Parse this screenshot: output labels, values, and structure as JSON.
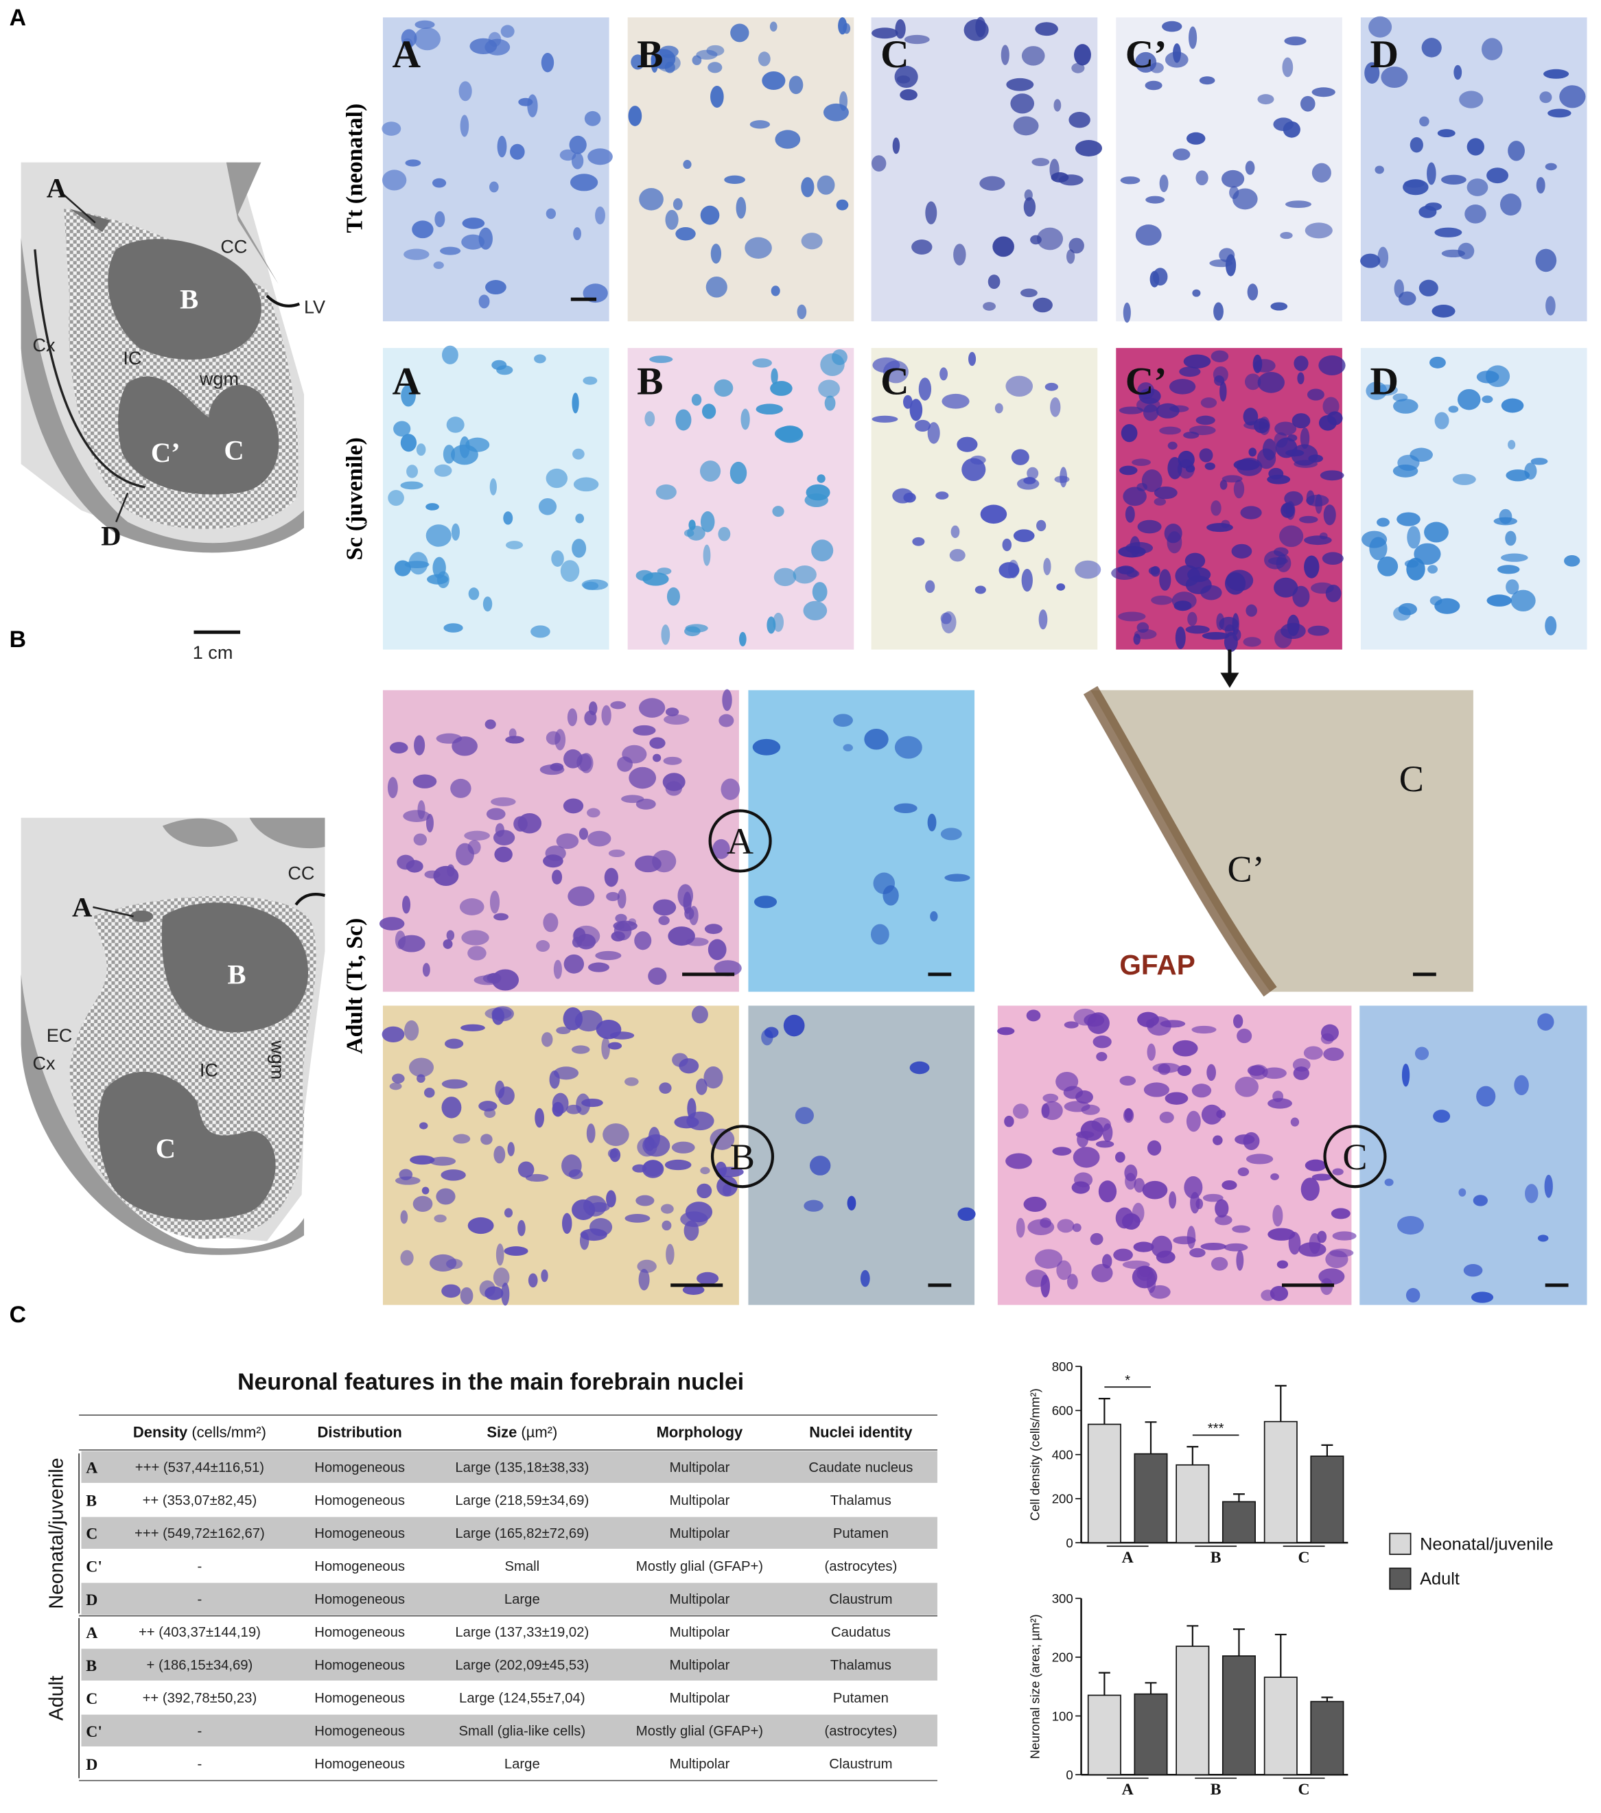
{
  "panel_labels": [
    "A",
    "B",
    "C"
  ],
  "diagram_a": {
    "A": "A",
    "CC": "CC",
    "LV": "LV",
    "B": "B",
    "Cx": "Cx",
    "IC": "IC",
    "wgm": "wgm",
    "Cp": "C’",
    "C": "C",
    "D": "D",
    "scale": "1 cm"
  },
  "diagram_b": {
    "A": "A",
    "CC": "CC",
    "B": "B",
    "EC": "EC",
    "Cx": "Cx",
    "IC": "IC",
    "wgm": "wgm",
    "C": "C"
  },
  "micrographs": {
    "row_labels": [
      "Tt (neonatal)",
      "Sc (juvenile)",
      "Adult (Tt, Sc)"
    ],
    "tt_tiles": [
      "A",
      "B",
      "C",
      "C’",
      "D"
    ],
    "sc_tiles": [
      "A",
      "B",
      "C",
      "C’",
      "D"
    ],
    "adult_circles": [
      "A",
      "B",
      "C"
    ],
    "gfap": {
      "label": "GFAP",
      "regions": [
        "C",
        "C’"
      ]
    }
  },
  "table": {
    "title": "Neuronal features in the main forebrain nuclei",
    "headers": [
      {
        "name": "Density",
        "unit": "(cells/mm²)"
      },
      {
        "name": "Distribution"
      },
      {
        "name": "Size",
        "unit": "(µm²)"
      },
      {
        "name": "Morphology"
      },
      {
        "name": "Nuclei identity"
      }
    ],
    "groups": [
      {
        "name": "Neonatal/juvenile",
        "rows": [
          [
            "A",
            "+++ (537,44±116,51)",
            "Homogeneous",
            "Large (135,18±38,33)",
            "Multipolar",
            "Caudate nucleus"
          ],
          [
            "B",
            "++ (353,07±82,45)",
            "Homogeneous",
            "Large (218,59±34,69)",
            "Multipolar",
            "Thalamus"
          ],
          [
            "C",
            "+++ (549,72±162,67)",
            "Homogeneous",
            "Large (165,82±72,69)",
            "Multipolar",
            "Putamen"
          ],
          [
            "C'",
            "-",
            "Homogeneous",
            "Small",
            "Mostly glial (GFAP+)",
            "(astrocytes)"
          ],
          [
            "D",
            "-",
            "Homogeneous",
            "Large",
            "Multipolar",
            "Claustrum"
          ]
        ]
      },
      {
        "name": "Adult",
        "rows": [
          [
            "A",
            "++ (403,37±144,19)",
            "Homogeneous",
            "Large (137,33±19,02)",
            "Multipolar",
            "Caudatus"
          ],
          [
            "B",
            "+ (186,15±34,69)",
            "Homogeneous",
            "Large (202,09±45,53)",
            "Multipolar",
            "Thalamus"
          ],
          [
            "C",
            "++ (392,78±50,23)",
            "Homogeneous",
            "Large (124,55±7,04)",
            "Multipolar",
            "Putamen"
          ],
          [
            "C'",
            "-",
            "Homogeneous",
            "Small (glia-like cells)",
            "Mostly glial (GFAP+)",
            "(astrocytes)"
          ],
          [
            "D",
            "-",
            "Homogeneous",
            "Large",
            "Multipolar",
            "Claustrum"
          ]
        ]
      }
    ]
  },
  "chart_data": [
    {
      "type": "bar",
      "ylabel": "Cell density (cells/mm²)",
      "categories": [
        "A",
        "B",
        "C"
      ],
      "ylim": [
        0,
        800
      ],
      "yticks": [
        0,
        200,
        400,
        600,
        800
      ],
      "series": [
        {
          "name": "Neonatal/juvenile",
          "color": "#d9d9d9",
          "values": [
            537.44,
            353.07,
            549.72
          ],
          "errors": [
            116.51,
            82.45,
            162.67
          ]
        },
        {
          "name": "Adult",
          "color": "#5a5a5a",
          "values": [
            403.37,
            186.15,
            392.78
          ],
          "errors": [
            144.19,
            34.69,
            50.23
          ]
        }
      ],
      "annotations": [
        "*",
        "***"
      ]
    },
    {
      "type": "bar",
      "ylabel": "Neuronal size (area; µm²)",
      "categories": [
        "A",
        "B",
        "C"
      ],
      "ylim": [
        0,
        300
      ],
      "yticks": [
        0,
        100,
        200,
        300
      ],
      "series": [
        {
          "name": "Neonatal/juvenile",
          "color": "#d9d9d9",
          "values": [
            135.18,
            218.59,
            165.82
          ],
          "errors": [
            38.33,
            34.69,
            72.69
          ]
        },
        {
          "name": "Adult",
          "color": "#5a5a5a",
          "values": [
            137.33,
            202.09,
            124.55
          ],
          "errors": [
            19.02,
            45.53,
            7.04
          ]
        }
      ]
    }
  ]
}
